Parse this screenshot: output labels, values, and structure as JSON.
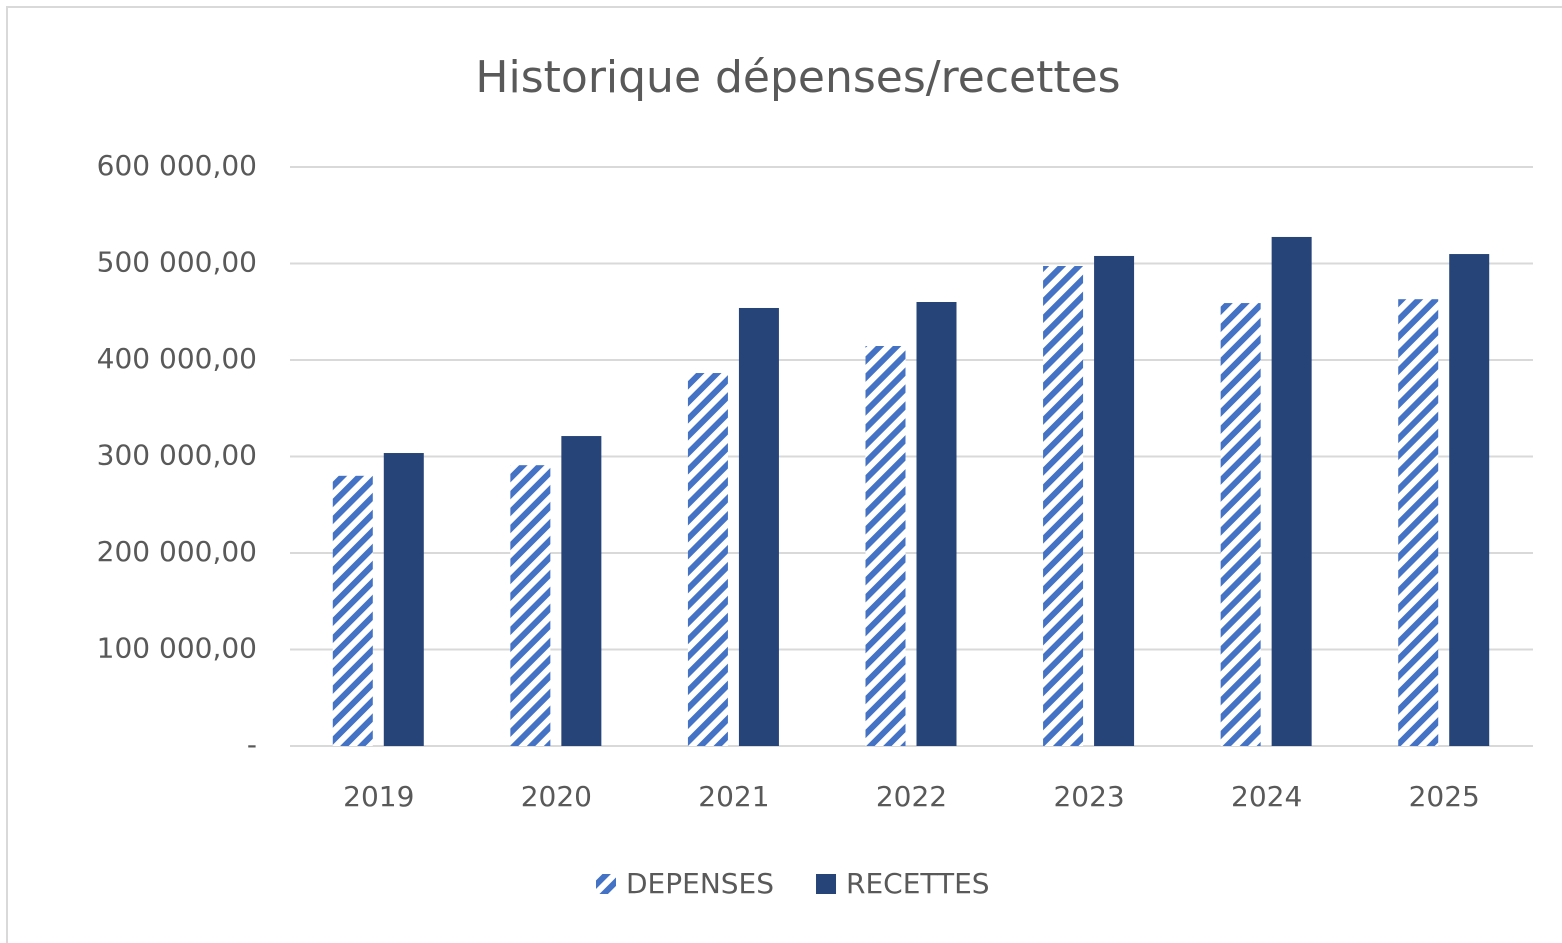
{
  "chart_data": {
    "type": "bar",
    "title": "Historique dépenses/recettes",
    "categories": [
      "2019",
      "2020",
      "2021",
      "2022",
      "2023",
      "2024",
      "2025"
    ],
    "series": [
      {
        "name": "DEPENSES",
        "color": "#4472c4",
        "pattern": "hatch",
        "values": [
          280000,
          291000,
          386500,
          414500,
          497400,
          459000,
          463000
        ]
      },
      {
        "name": "RECETTES",
        "color": "#264478",
        "values": [
          303600,
          321200,
          453900,
          460100,
          507800,
          527500,
          509800
        ]
      }
    ],
    "ylim": [
      0,
      600000
    ],
    "yticks": [
      {
        "value": 0,
        "label": "-"
      },
      {
        "value": 100000,
        "label": "100 000,00"
      },
      {
        "value": 200000,
        "label": "200 000,00"
      },
      {
        "value": 300000,
        "label": "300 000,00"
      },
      {
        "value": 400000,
        "label": "400 000,00"
      },
      {
        "value": 500000,
        "label": "500 000,00"
      },
      {
        "value": 600000,
        "label": "600 000,00"
      }
    ],
    "grid": true,
    "legend": "bottom"
  }
}
